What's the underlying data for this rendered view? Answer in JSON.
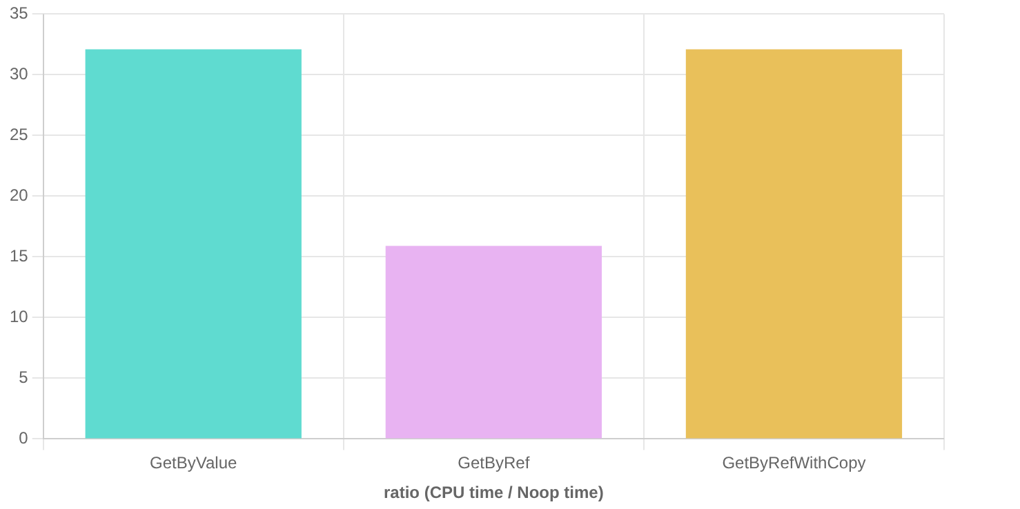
{
  "chart_data": {
    "type": "bar",
    "xlabel": "ratio (CPU time / Noop time)",
    "categories": [
      "GetByValue",
      "GetByRef",
      "GetByRefWithCopy"
    ],
    "values": [
      32.1,
      15.9,
      32.1
    ],
    "colors": [
      "#5fdbd0",
      "#e8b3f2",
      "#e9c05a"
    ],
    "ylim": [
      0,
      35
    ],
    "yticks": [
      0,
      5,
      10,
      15,
      20,
      25,
      30,
      35
    ],
    "grid": true,
    "legend": false
  }
}
